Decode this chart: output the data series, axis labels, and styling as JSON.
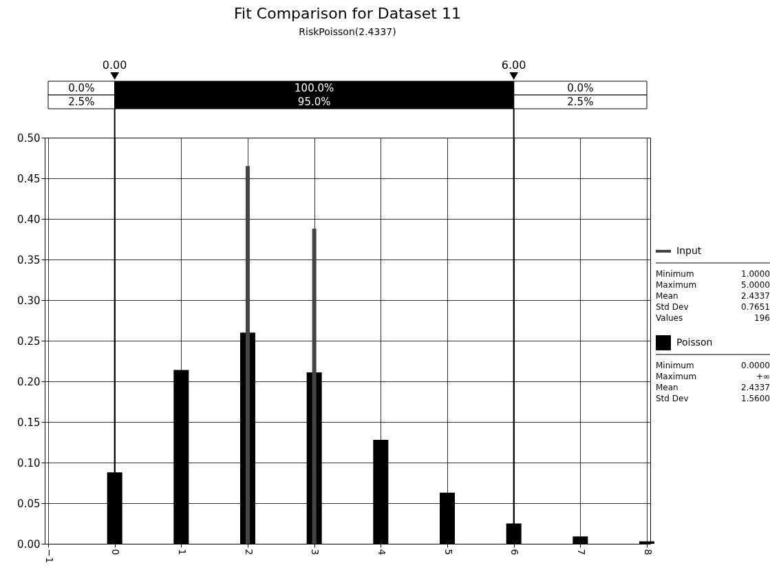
{
  "chart_data": {
    "type": "bar",
    "title": "Fit Comparison for Dataset 11",
    "subtitle": "RiskPoisson(2.4337)",
    "x": [
      0,
      1,
      2,
      3,
      4,
      5,
      6,
      7,
      8
    ],
    "series": [
      {
        "name": "Poisson",
        "color": "#000000",
        "values": [
          0.088,
          0.214,
          0.26,
          0.211,
          0.128,
          0.063,
          0.025,
          0.009,
          0.003
        ]
      },
      {
        "name": "Input",
        "color": "#444444",
        "values": [
          null,
          null,
          0.465,
          0.388,
          null,
          null,
          null,
          null,
          null
        ]
      }
    ],
    "xlim": [
      -1,
      8
    ],
    "xticks": [
      -1,
      0,
      1,
      2,
      3,
      4,
      5,
      6,
      7,
      8
    ],
    "ylim": [
      0,
      0.5
    ],
    "yticks": [
      {
        "value": 0,
        "label": "0.00"
      },
      {
        "value": 0.05,
        "label": "0.05"
      },
      {
        "value": 0.1,
        "label": "0.10"
      },
      {
        "value": 0.15,
        "label": "0.15"
      },
      {
        "value": 0.2,
        "label": "0.20"
      },
      {
        "value": 0.25,
        "label": "0.25"
      },
      {
        "value": 0.3,
        "label": "0.30"
      },
      {
        "value": 0.35,
        "label": "0.35"
      },
      {
        "value": 0.4,
        "label": "0.40"
      },
      {
        "value": 0.45,
        "label": "0.45"
      },
      {
        "value": 0.5,
        "label": "0.50"
      }
    ],
    "ref_lines": [
      {
        "axis": "x",
        "value": 0,
        "label": "0.00"
      },
      {
        "axis": "x",
        "value": 6,
        "label": "6.00"
      }
    ],
    "annotations": [
      "0.0%",
      "100.0%",
      "0.0%",
      "2.5%",
      "95.0%",
      "2.5%",
      "Minimum 1.0000",
      "Maximum 5.0000",
      "Mean 2.4337",
      "Std Dev 0.7651",
      "Values 196",
      "Minimum 0.0000",
      "Maximum +∞",
      "Mean 2.4337",
      "Std Dev 1.5600"
    ],
    "grid": true,
    "legend": "right"
  }
}
